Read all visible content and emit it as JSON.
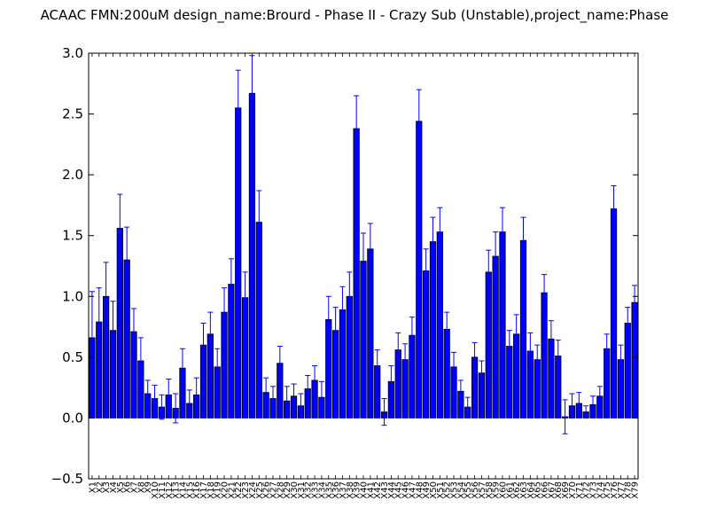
{
  "chart_data": {
    "type": "bar",
    "title": "ACAAC  FMN:200uM  design_name:Brourd - Phase II - Crazy Sub (Unstable),project_name:Phase",
    "xlabel": "",
    "ylabel": "",
    "ylim": [
      -0.5,
      3.0
    ],
    "yticks": [
      "−0.5",
      "0.0",
      "0.5",
      "1.0",
      "1.5",
      "2.0",
      "2.5",
      "3.0"
    ],
    "ytick_values": [
      -0.5,
      0.0,
      0.5,
      1.0,
      1.5,
      2.0,
      2.5,
      3.0
    ],
    "grid": false,
    "bar_color": "#0000ff",
    "error_color": "#0000ff",
    "categories": [
      "X1",
      "X2",
      "X3",
      "X4",
      "X5",
      "X6",
      "X7",
      "X8",
      "X9",
      "X10",
      "X11",
      "X12",
      "X13",
      "X14",
      "X15",
      "X16",
      "X17",
      "X18",
      "X19",
      "X20",
      "X21",
      "X22",
      "X23",
      "X24",
      "X25",
      "X26",
      "X27",
      "X28",
      "X29",
      "X30",
      "X31",
      "X32",
      "X33",
      "X34",
      "X35",
      "X36",
      "X37",
      "X38",
      "X39",
      "X40",
      "X41",
      "X42",
      "X43",
      "X44",
      "X45",
      "X46",
      "X47",
      "X48",
      "X49",
      "X50",
      "X51",
      "X52",
      "X53",
      "X54",
      "X55",
      "X56",
      "X57",
      "X58",
      "X59",
      "X60",
      "X61",
      "X62",
      "X63",
      "X64",
      "X65",
      "X66",
      "X67",
      "X68",
      "X69",
      "X70",
      "X71",
      "X72",
      "X73",
      "X74",
      "X75",
      "X76",
      "X77",
      "X78",
      "X79"
    ],
    "values": [
      0.66,
      0.79,
      1.0,
      0.72,
      1.56,
      1.3,
      0.71,
      0.47,
      0.2,
      0.16,
      0.09,
      0.19,
      0.08,
      0.41,
      0.12,
      0.19,
      0.6,
      0.69,
      0.42,
      0.87,
      1.1,
      2.55,
      0.99,
      2.67,
      1.61,
      0.21,
      0.16,
      0.45,
      0.14,
      0.18,
      0.1,
      0.24,
      0.31,
      0.17,
      0.81,
      0.72,
      0.89,
      1.0,
      2.38,
      1.29,
      1.39,
      0.43,
      0.05,
      0.3,
      0.56,
      0.48,
      0.68,
      2.44,
      1.21,
      1.45,
      1.53,
      0.73,
      0.42,
      0.22,
      0.09,
      0.5,
      0.37,
      1.2,
      1.33,
      1.53,
      0.59,
      0.69,
      1.46,
      0.55,
      0.48,
      1.03,
      0.65,
      0.51,
      0.01,
      0.1,
      0.12,
      0.05,
      0.11,
      0.18,
      0.57,
      1.72,
      0.48,
      0.78,
      0.95
    ],
    "errors": [
      0.38,
      0.28,
      0.28,
      0.24,
      0.28,
      0.27,
      0.19,
      0.19,
      0.11,
      0.11,
      0.1,
      0.13,
      0.12,
      0.16,
      0.11,
      0.14,
      0.18,
      0.18,
      0.15,
      0.2,
      0.21,
      0.31,
      0.21,
      0.31,
      0.26,
      0.12,
      0.1,
      0.14,
      0.12,
      0.1,
      0.1,
      0.11,
      0.12,
      0.13,
      0.19,
      0.19,
      0.19,
      0.2,
      0.27,
      0.23,
      0.21,
      0.13,
      0.11,
      0.13,
      0.14,
      0.13,
      0.15,
      0.26,
      0.18,
      0.2,
      0.2,
      0.14,
      0.12,
      0.09,
      0.08,
      0.12,
      0.1,
      0.18,
      0.2,
      0.2,
      0.13,
      0.16,
      0.19,
      0.15,
      0.12,
      0.15,
      0.15,
      0.13,
      0.14,
      0.1,
      0.09,
      0.05,
      0.07,
      0.08,
      0.12,
      0.19,
      0.12,
      0.13,
      0.14
    ]
  }
}
